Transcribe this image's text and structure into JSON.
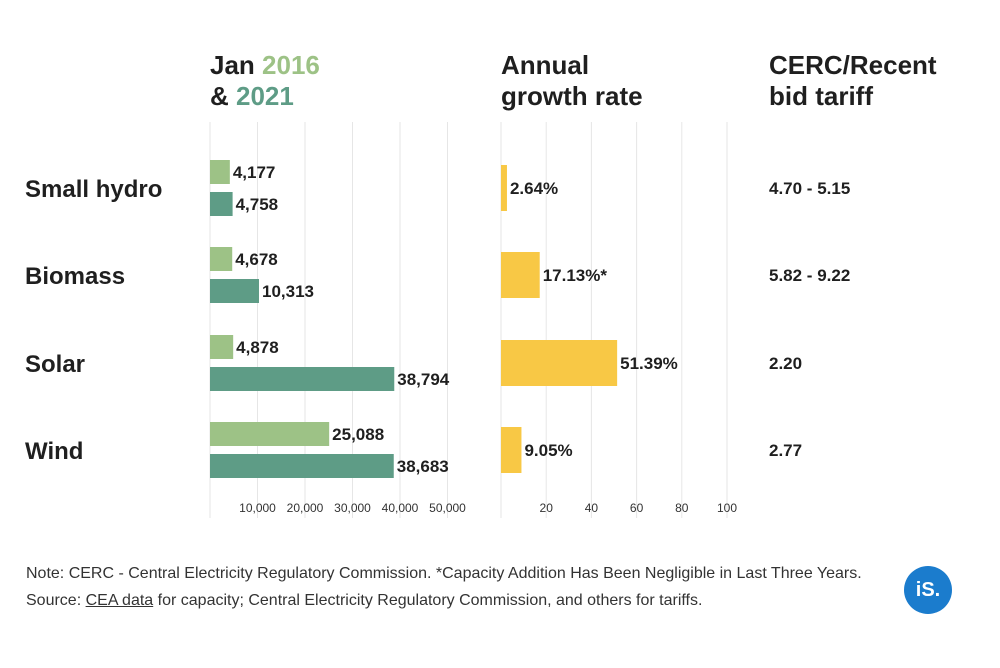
{
  "headers": {
    "capacity_line1_prefix": "Jan ",
    "capacity_year1": "2016",
    "capacity_line2_prefix": "& ",
    "capacity_year2": "2021",
    "growth_line1": "Annual",
    "growth_line2": "growth rate",
    "tariff_line1": "CERC/Recent",
    "tariff_line2": "bid tariff"
  },
  "colors": {
    "year_2016": "#9dc286",
    "year_2021": "#5e9c86",
    "growth": "#f8c845",
    "text": "#1f1f1f"
  },
  "chart_data": [
    {
      "type": "bar",
      "orientation": "horizontal",
      "categories": [
        "Small hydro",
        "Biomass",
        "Solar",
        "Wind"
      ],
      "series": [
        {
          "name": "2016",
          "values": [
            4177,
            4678,
            4878,
            25088
          ],
          "labels": [
            "4,177",
            "4,678",
            "4,878",
            "25,088"
          ]
        },
        {
          "name": "2021",
          "values": [
            4758,
            10313,
            38794,
            38683
          ],
          "labels": [
            "4,758",
            "10,313",
            "38,794",
            "38,683"
          ]
        }
      ],
      "xlim": [
        0,
        50000
      ],
      "xticks": [
        10000,
        20000,
        30000,
        40000,
        50000
      ],
      "xtick_labels": [
        "10,000",
        "20,000",
        "30,000",
        "40,000",
        "50,000"
      ],
      "grid": true
    },
    {
      "type": "bar",
      "orientation": "horizontal",
      "categories": [
        "Small hydro",
        "Biomass",
        "Solar",
        "Wind"
      ],
      "values": [
        2.64,
        17.13,
        51.39,
        9.05
      ],
      "labels": [
        "2.64%",
        "17.13%*",
        "51.39%",
        "9.05%"
      ],
      "xlim": [
        0,
        100
      ],
      "xticks": [
        20,
        40,
        60,
        80,
        100
      ],
      "xtick_labels": [
        "20",
        "40",
        "60",
        "80",
        "100"
      ],
      "grid": true
    },
    {
      "type": "table",
      "categories": [
        "Small hydro",
        "Biomass",
        "Solar",
        "Wind"
      ],
      "values": [
        "4.70 - 5.15",
        "5.82 - 9.22",
        "2.20",
        "2.77"
      ]
    }
  ],
  "note": {
    "text_before_link": "Note: CERC - Central Electricity Regulatory Commission. *Capacity Addition Has Been Negligible in Last Three Years. Source: ",
    "link_text": "CEA data",
    "text_after_link": " for capacity; Central Electricity Regulatory Commission, and others for tariffs."
  },
  "logo": {
    "text": "iS."
  }
}
